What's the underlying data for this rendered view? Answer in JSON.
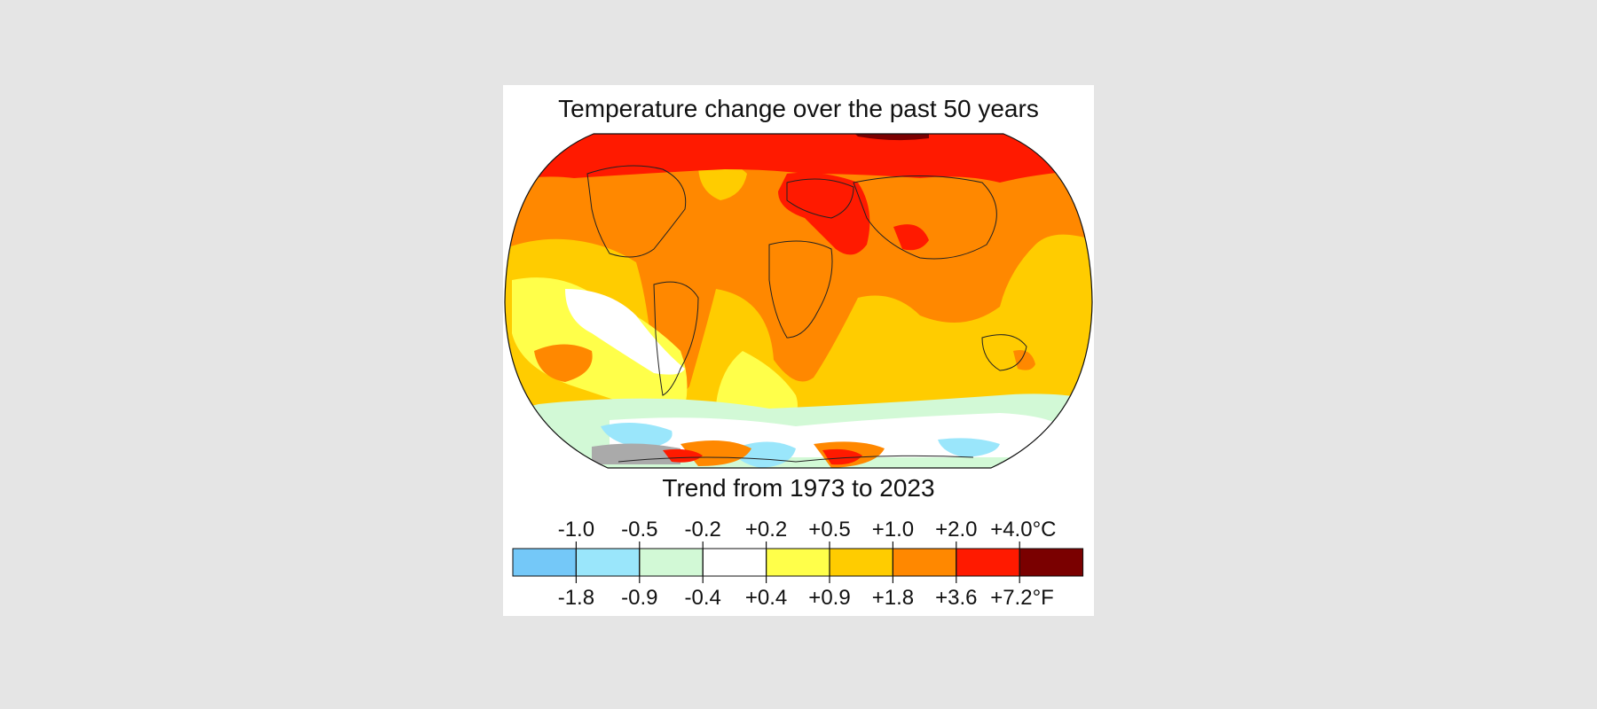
{
  "figure": {
    "title": "Temperature change over the past 50 years",
    "subtitle": "Trend from 1973 to 2023"
  },
  "legend": {
    "celsius_labels": [
      "-1.0",
      "-0.5",
      "-0.2",
      "+0.2",
      "+0.5",
      "+1.0",
      "+2.0",
      "+4.0°C"
    ],
    "fahrenheit_labels": [
      "-1.8",
      "-0.9",
      "-0.4",
      "+0.4",
      "+0.9",
      "+1.8",
      "+3.6",
      "+7.2°F"
    ],
    "colors": [
      "#74c8f8",
      "#9ae6fb",
      "#d2f9d6",
      "#ffffff",
      "#ffff4a",
      "#ffcc00",
      "#ff8800",
      "#ff1a00",
      "#7a0000"
    ]
  },
  "map_colors": {
    "ocean_base": "#ffcc00",
    "no_data": "#aaaaaa",
    "outline": "#222222"
  }
}
